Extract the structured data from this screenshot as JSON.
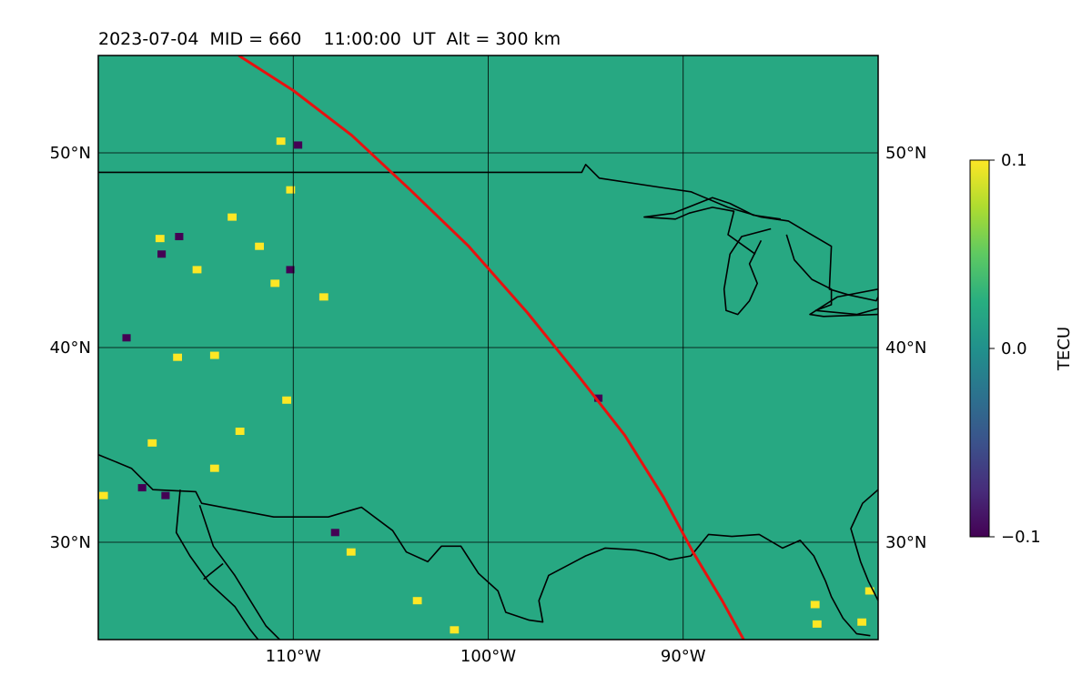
{
  "chart_data": {
    "type": "heatmap",
    "title": "2023-07-04  MID = 660    11:00:00  UT  Alt = 300 km",
    "projection": "equirectangular map",
    "xlim": [
      -120,
      -80
    ],
    "ylim": [
      25,
      55
    ],
    "x_ticks": [
      {
        "value": -110,
        "label": "110°W"
      },
      {
        "value": -100,
        "label": "100°W"
      },
      {
        "value": -90,
        "label": "90°W"
      }
    ],
    "y_ticks": [
      {
        "value": 30,
        "label": "30°N"
      },
      {
        "value": 40,
        "label": "40°N"
      },
      {
        "value": 50,
        "label": "50°N"
      }
    ],
    "grid": true,
    "colormap": "viridis",
    "colorbar": {
      "label": "TECU",
      "vmin": -0.1,
      "vmax": 0.1,
      "ticks": [
        {
          "value": 0.1,
          "label": "0.1"
        },
        {
          "value": 0.0,
          "label": "0.0"
        },
        {
          "value": -0.1,
          "label": "−0.1"
        }
      ]
    },
    "background_value": 0.02,
    "hotspots_positive": [
      [
        -110.7,
        50.6
      ],
      [
        -110.2,
        48.1
      ],
      [
        -116.9,
        45.6
      ],
      [
        -111.8,
        45.2
      ],
      [
        -113.2,
        46.7
      ],
      [
        -111.0,
        43.3
      ],
      [
        -108.5,
        42.6
      ],
      [
        -110.4,
        37.3
      ],
      [
        -116.0,
        39.5
      ],
      [
        -114.1,
        39.6
      ],
      [
        -117.3,
        35.1
      ],
      [
        -112.8,
        35.7
      ],
      [
        -114.1,
        33.8
      ],
      [
        -119.8,
        32.4
      ],
      [
        -103.7,
        27.0
      ],
      [
        -101.8,
        25.5
      ],
      [
        -83.3,
        26.8
      ],
      [
        -83.2,
        25.8
      ],
      [
        -80.9,
        25.9
      ],
      [
        -80.5,
        27.5
      ],
      [
        -107.1,
        29.5
      ],
      [
        -115.0,
        44.0
      ]
    ],
    "hotspots_negative": [
      [
        -109.8,
        50.4
      ],
      [
        -118.6,
        40.5
      ],
      [
        -115.9,
        45.7
      ],
      [
        -107.9,
        30.5
      ],
      [
        -116.6,
        32.4
      ],
      [
        -94.4,
        37.4
      ],
      [
        -116.8,
        44.8
      ],
      [
        -110.2,
        44.0
      ],
      [
        -117.8,
        32.8
      ]
    ],
    "series": [
      {
        "name": "",
        "color": "#e8110f",
        "points": [
          [
            -112.8,
            55.0
          ],
          [
            -110.0,
            53.2
          ],
          [
            -107.0,
            50.9
          ],
          [
            -104.0,
            48.1
          ],
          [
            -101.0,
            45.2
          ],
          [
            -98.0,
            41.8
          ],
          [
            -95.5,
            38.7
          ],
          [
            -93.0,
            35.5
          ],
          [
            -91.0,
            32.3
          ],
          [
            -89.5,
            29.5
          ],
          [
            -88.0,
            27.0
          ],
          [
            -86.9,
            25.0
          ]
        ]
      }
    ],
    "coastlines": [
      [
        [
          -120,
          49.0
        ],
        [
          -95.2,
          49.0
        ],
        [
          -95.0,
          49.4
        ],
        [
          -94.3,
          48.7
        ],
        [
          -91.0,
          48.2
        ],
        [
          -89.6,
          48.0
        ],
        [
          -87.7,
          47.2
        ],
        [
          -86.0,
          46.7
        ],
        [
          -84.6,
          46.5
        ],
        [
          -83.6,
          45.9
        ],
        [
          -82.4,
          45.2
        ],
        [
          -82.5,
          43.0
        ],
        [
          -81.5,
          42.7
        ],
        [
          -80.1,
          42.4
        ],
        [
          -80,
          42.6
        ]
      ],
      [
        [
          -86.3,
          44.8
        ],
        [
          -87.7,
          45.8
        ],
        [
          -87.4,
          47.0
        ],
        [
          -88.5,
          47.2
        ],
        [
          -89.7,
          46.9
        ],
        [
          -90.4,
          46.6
        ],
        [
          -92.0,
          46.7
        ],
        [
          -90.5,
          46.9
        ],
        [
          -88.5,
          47.7
        ],
        [
          -87.6,
          47.4
        ],
        [
          -86.4,
          46.8
        ],
        [
          -85.0,
          46.6
        ]
      ],
      [
        [
          -85.5,
          46.1
        ],
        [
          -87.0,
          45.7
        ],
        [
          -87.6,
          44.8
        ],
        [
          -87.9,
          43.0
        ],
        [
          -87.8,
          41.9
        ],
        [
          -87.2,
          41.7
        ],
        [
          -86.6,
          42.4
        ],
        [
          -86.2,
          43.3
        ],
        [
          -86.6,
          44.3
        ],
        [
          -86.0,
          45.5
        ]
      ],
      [
        [
          -84.7,
          45.8
        ],
        [
          -84.3,
          44.5
        ],
        [
          -83.4,
          43.5
        ],
        [
          -82.4,
          43.0
        ],
        [
          -82.4,
          42.2
        ],
        [
          -83.2,
          41.9
        ],
        [
          -81.1,
          41.7
        ],
        [
          -80,
          42.0
        ]
      ],
      [
        [
          -80,
          41.7
        ],
        [
          -82.8,
          41.6
        ],
        [
          -83.5,
          41.7
        ],
        [
          -82.1,
          42.6
        ],
        [
          -80,
          43.0
        ]
      ],
      [
        [
          -120,
          34.5
        ],
        [
          -118.3,
          33.8
        ],
        [
          -117.2,
          32.7
        ],
        [
          -115.0,
          32.6
        ],
        [
          -114.7,
          32.0
        ],
        [
          -111.0,
          31.3
        ],
        [
          -108.2,
          31.3
        ],
        [
          -106.5,
          31.8
        ],
        [
          -104.9,
          30.6
        ],
        [
          -104.2,
          29.5
        ],
        [
          -103.1,
          29.0
        ],
        [
          -102.4,
          29.8
        ],
        [
          -101.4,
          29.8
        ],
        [
          -100.5,
          28.4
        ],
        [
          -99.5,
          27.5
        ],
        [
          -99.1,
          26.4
        ],
        [
          -97.9,
          26.0
        ],
        [
          -97.2,
          25.9
        ],
        [
          -97.4,
          27.0
        ],
        [
          -96.9,
          28.3
        ],
        [
          -95.0,
          29.3
        ],
        [
          -94.0,
          29.7
        ],
        [
          -92.4,
          29.6
        ],
        [
          -91.5,
          29.4
        ],
        [
          -90.7,
          29.1
        ],
        [
          -89.6,
          29.3
        ],
        [
          -88.7,
          30.4
        ],
        [
          -87.5,
          30.3
        ],
        [
          -86.1,
          30.4
        ],
        [
          -84.9,
          29.7
        ],
        [
          -84.0,
          30.1
        ],
        [
          -83.3,
          29.3
        ],
        [
          -82.7,
          28.0
        ],
        [
          -82.4,
          27.2
        ],
        [
          -81.8,
          26.1
        ],
        [
          -81.1,
          25.3
        ],
        [
          -80.4,
          25.2
        ]
      ],
      [
        [
          -80,
          27.0
        ],
        [
          -80.5,
          28.0
        ],
        [
          -80.9,
          29.0
        ],
        [
          -81.4,
          30.7
        ],
        [
          -80.8,
          32.0
        ],
        [
          -80,
          32.7
        ]
      ],
      [
        [
          -114.8,
          31.9
        ],
        [
          -114.1,
          29.8
        ],
        [
          -113.0,
          28.3
        ],
        [
          -112.2,
          27.0
        ],
        [
          -111.4,
          25.7
        ],
        [
          -110.7,
          25.0
        ]
      ],
      [
        [
          -115.8,
          32.7
        ],
        [
          -116.0,
          30.5
        ],
        [
          -115.3,
          29.3
        ],
        [
          -114.3,
          27.9
        ],
        [
          -113.0,
          26.7
        ],
        [
          -112.2,
          25.5
        ],
        [
          -111.8,
          25.0
        ]
      ],
      [
        [
          -113.6,
          28.9
        ],
        [
          -114.6,
          28.1
        ]
      ]
    ]
  }
}
